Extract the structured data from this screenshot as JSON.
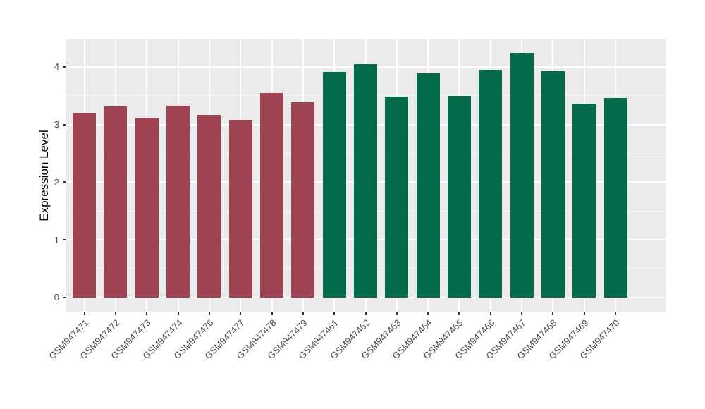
{
  "figure": {
    "background": "#FFFFFF",
    "panel_background": "#EBEBEB",
    "gridline_color": "#FFFFFF",
    "axis_text_color": "#4D4D4D",
    "axis_title_color": "#000000",
    "tick_mark_color": "#333333"
  },
  "chart_data": {
    "type": "bar",
    "title": "",
    "xlabel": "",
    "ylabel": "Expression Level",
    "legend": "none",
    "grid": "major and minor horizontal white gridlines, vertical white gridlines at bar centers, on gray panel",
    "ylim": [
      0,
      4.47
    ],
    "y_ticks": [
      0,
      1,
      2,
      3,
      4
    ],
    "y_minor_ticks": [
      0.5,
      1.5,
      2.5,
      3.5
    ],
    "categories": [
      "GSM947471",
      "GSM947472",
      "GSM947473",
      "GSM947474",
      "GSM947476",
      "GSM947477",
      "GSM947478",
      "GSM947479",
      "GSM947461",
      "GSM947462",
      "GSM947463",
      "GSM947464",
      "GSM947465",
      "GSM947466",
      "GSM947467",
      "GSM947468",
      "GSM947469",
      "GSM947470"
    ],
    "values": [
      3.2,
      3.31,
      3.12,
      3.33,
      3.16,
      3.08,
      3.55,
      3.39,
      3.91,
      4.05,
      3.48,
      3.89,
      3.5,
      3.95,
      4.24,
      3.92,
      3.36,
      3.46
    ],
    "groups": [
      "group1",
      "group1",
      "group1",
      "group1",
      "group1",
      "group1",
      "group1",
      "group1",
      "group2",
      "group2",
      "group2",
      "group2",
      "group2",
      "group2",
      "group2",
      "group2",
      "group2",
      "group2"
    ],
    "group_colors": {
      "group1": "#9D4351",
      "group2": "#046A4B"
    }
  }
}
